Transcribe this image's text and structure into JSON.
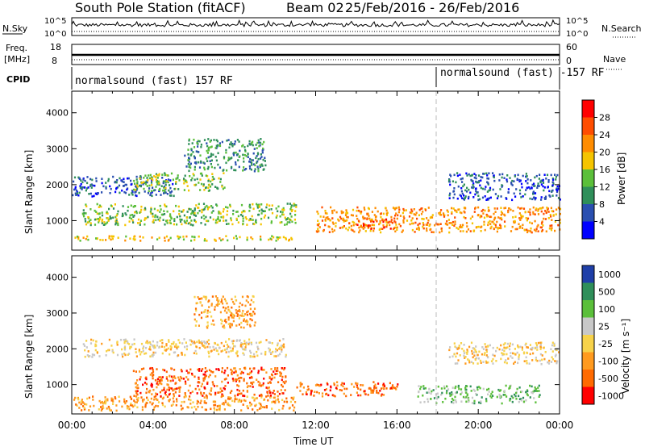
{
  "header": {
    "station": "South Pole Station (fitACF)",
    "beam": "Beam 02",
    "daterange": "25/Feb/2016 - 26/Feb/2016"
  },
  "top_panels": {
    "nsky_label": "N.Sky",
    "nsky_ticks": [
      "10^5",
      "10^0"
    ],
    "nsearch_label": "N.Search",
    "nsearch_ticks": [
      "10^5",
      "10^0"
    ],
    "freq_label_1": "Freq.",
    "freq_label_2": "[MHz]",
    "freq_ticks": [
      "18",
      "8"
    ],
    "nave_label": "Nave",
    "nave_ticks": [
      "60",
      "0"
    ],
    "cpid_label": "CPID",
    "cpid_program_1": "normalsound (fast) 157 RF",
    "cpid_program_2": "normalsound (fast) -157 RF"
  },
  "colors": {
    "power": [
      "#0000ff",
      "#2a4fb0",
      "#2f8f5a",
      "#5bbf3a",
      "#f5c400",
      "#ff8c00",
      "#ff4d00",
      "#ff0000"
    ],
    "velocity": [
      "#ff0000",
      "#ff6a00",
      "#ff9a1f",
      "#f7d24a",
      "#c8c8c8",
      "#5bbf3a",
      "#2f8f5a",
      "#1f3fa8"
    ]
  },
  "chart_data": [
    {
      "type": "heatmap",
      "panel": "power",
      "x": [
        "00:00",
        "04:00",
        "08:00",
        "12:00",
        "16:00",
        "20:00",
        "00:00"
      ],
      "xlabel": "Time UT",
      "ylabel": "Slant Range [km]",
      "yticks": [
        "1000",
        "2000",
        "3000",
        "4000"
      ],
      "ylim": [
        180,
        4600
      ],
      "colorbar_title": "Power [dB]",
      "colorbar_ticks": [
        "4",
        "8",
        "12",
        "16",
        "20",
        "24",
        "28"
      ],
      "series": [
        {
          "x": [
            0.0,
            11.0
          ],
          "y": [
            460,
            600
          ],
          "value": 20
        },
        {
          "x": [
            0.0,
            5.0
          ],
          "y": [
            1700,
            2250
          ],
          "value": 8
        },
        {
          "x": [
            3.0,
            7.5
          ],
          "y": [
            1850,
            2350
          ],
          "value": 16
        },
        {
          "x": [
            0.5,
            11.0
          ],
          "y": [
            900,
            1500
          ],
          "value": 14
        },
        {
          "x": [
            5.5,
            9.5
          ],
          "y": [
            2400,
            3300
          ],
          "value": 10
        },
        {
          "x": [
            12.0,
            24.0
          ],
          "y": [
            700,
            1400
          ],
          "value": 24
        },
        {
          "x": [
            14.0,
            16.0
          ],
          "y": [
            800,
            1100
          ],
          "value": 28
        },
        {
          "x": [
            18.5,
            24.0
          ],
          "y": [
            1600,
            2350
          ],
          "value": 6
        }
      ]
    },
    {
      "type": "heatmap",
      "panel": "velocity",
      "x": [
        "00:00",
        "04:00",
        "08:00",
        "12:00",
        "16:00",
        "20:00",
        "00:00"
      ],
      "xlabel": "Time UT",
      "ylabel": "Slant Range [km]",
      "yticks": [
        "1000",
        "2000",
        "3000",
        "4000"
      ],
      "ylim": [
        180,
        4600
      ],
      "colorbar_title": "Velocity [m s⁻¹]",
      "colorbar_ticks": [
        "-1000",
        "-500",
        "-100",
        "-25",
        "25",
        "100",
        "500",
        "1000"
      ],
      "series": [
        {
          "x": [
            0.0,
            11.0
          ],
          "y": [
            300,
            700
          ],
          "value": -100
        },
        {
          "x": [
            0.5,
            10.5
          ],
          "y": [
            1800,
            2300
          ],
          "value": 0
        },
        {
          "x": [
            3.0,
            10.5
          ],
          "y": [
            700,
            1500
          ],
          "value": -200
        },
        {
          "x": [
            6.0,
            9.0
          ],
          "y": [
            2600,
            3500
          ],
          "value": -100
        },
        {
          "x": [
            11.0,
            16.0
          ],
          "y": [
            700,
            1100
          ],
          "value": -500
        },
        {
          "x": [
            17.0,
            23.0
          ],
          "y": [
            500,
            1000
          ],
          "value": 200
        },
        {
          "x": [
            18.5,
            24.0
          ],
          "y": [
            1600,
            2200
          ],
          "value": 0
        }
      ]
    }
  ]
}
